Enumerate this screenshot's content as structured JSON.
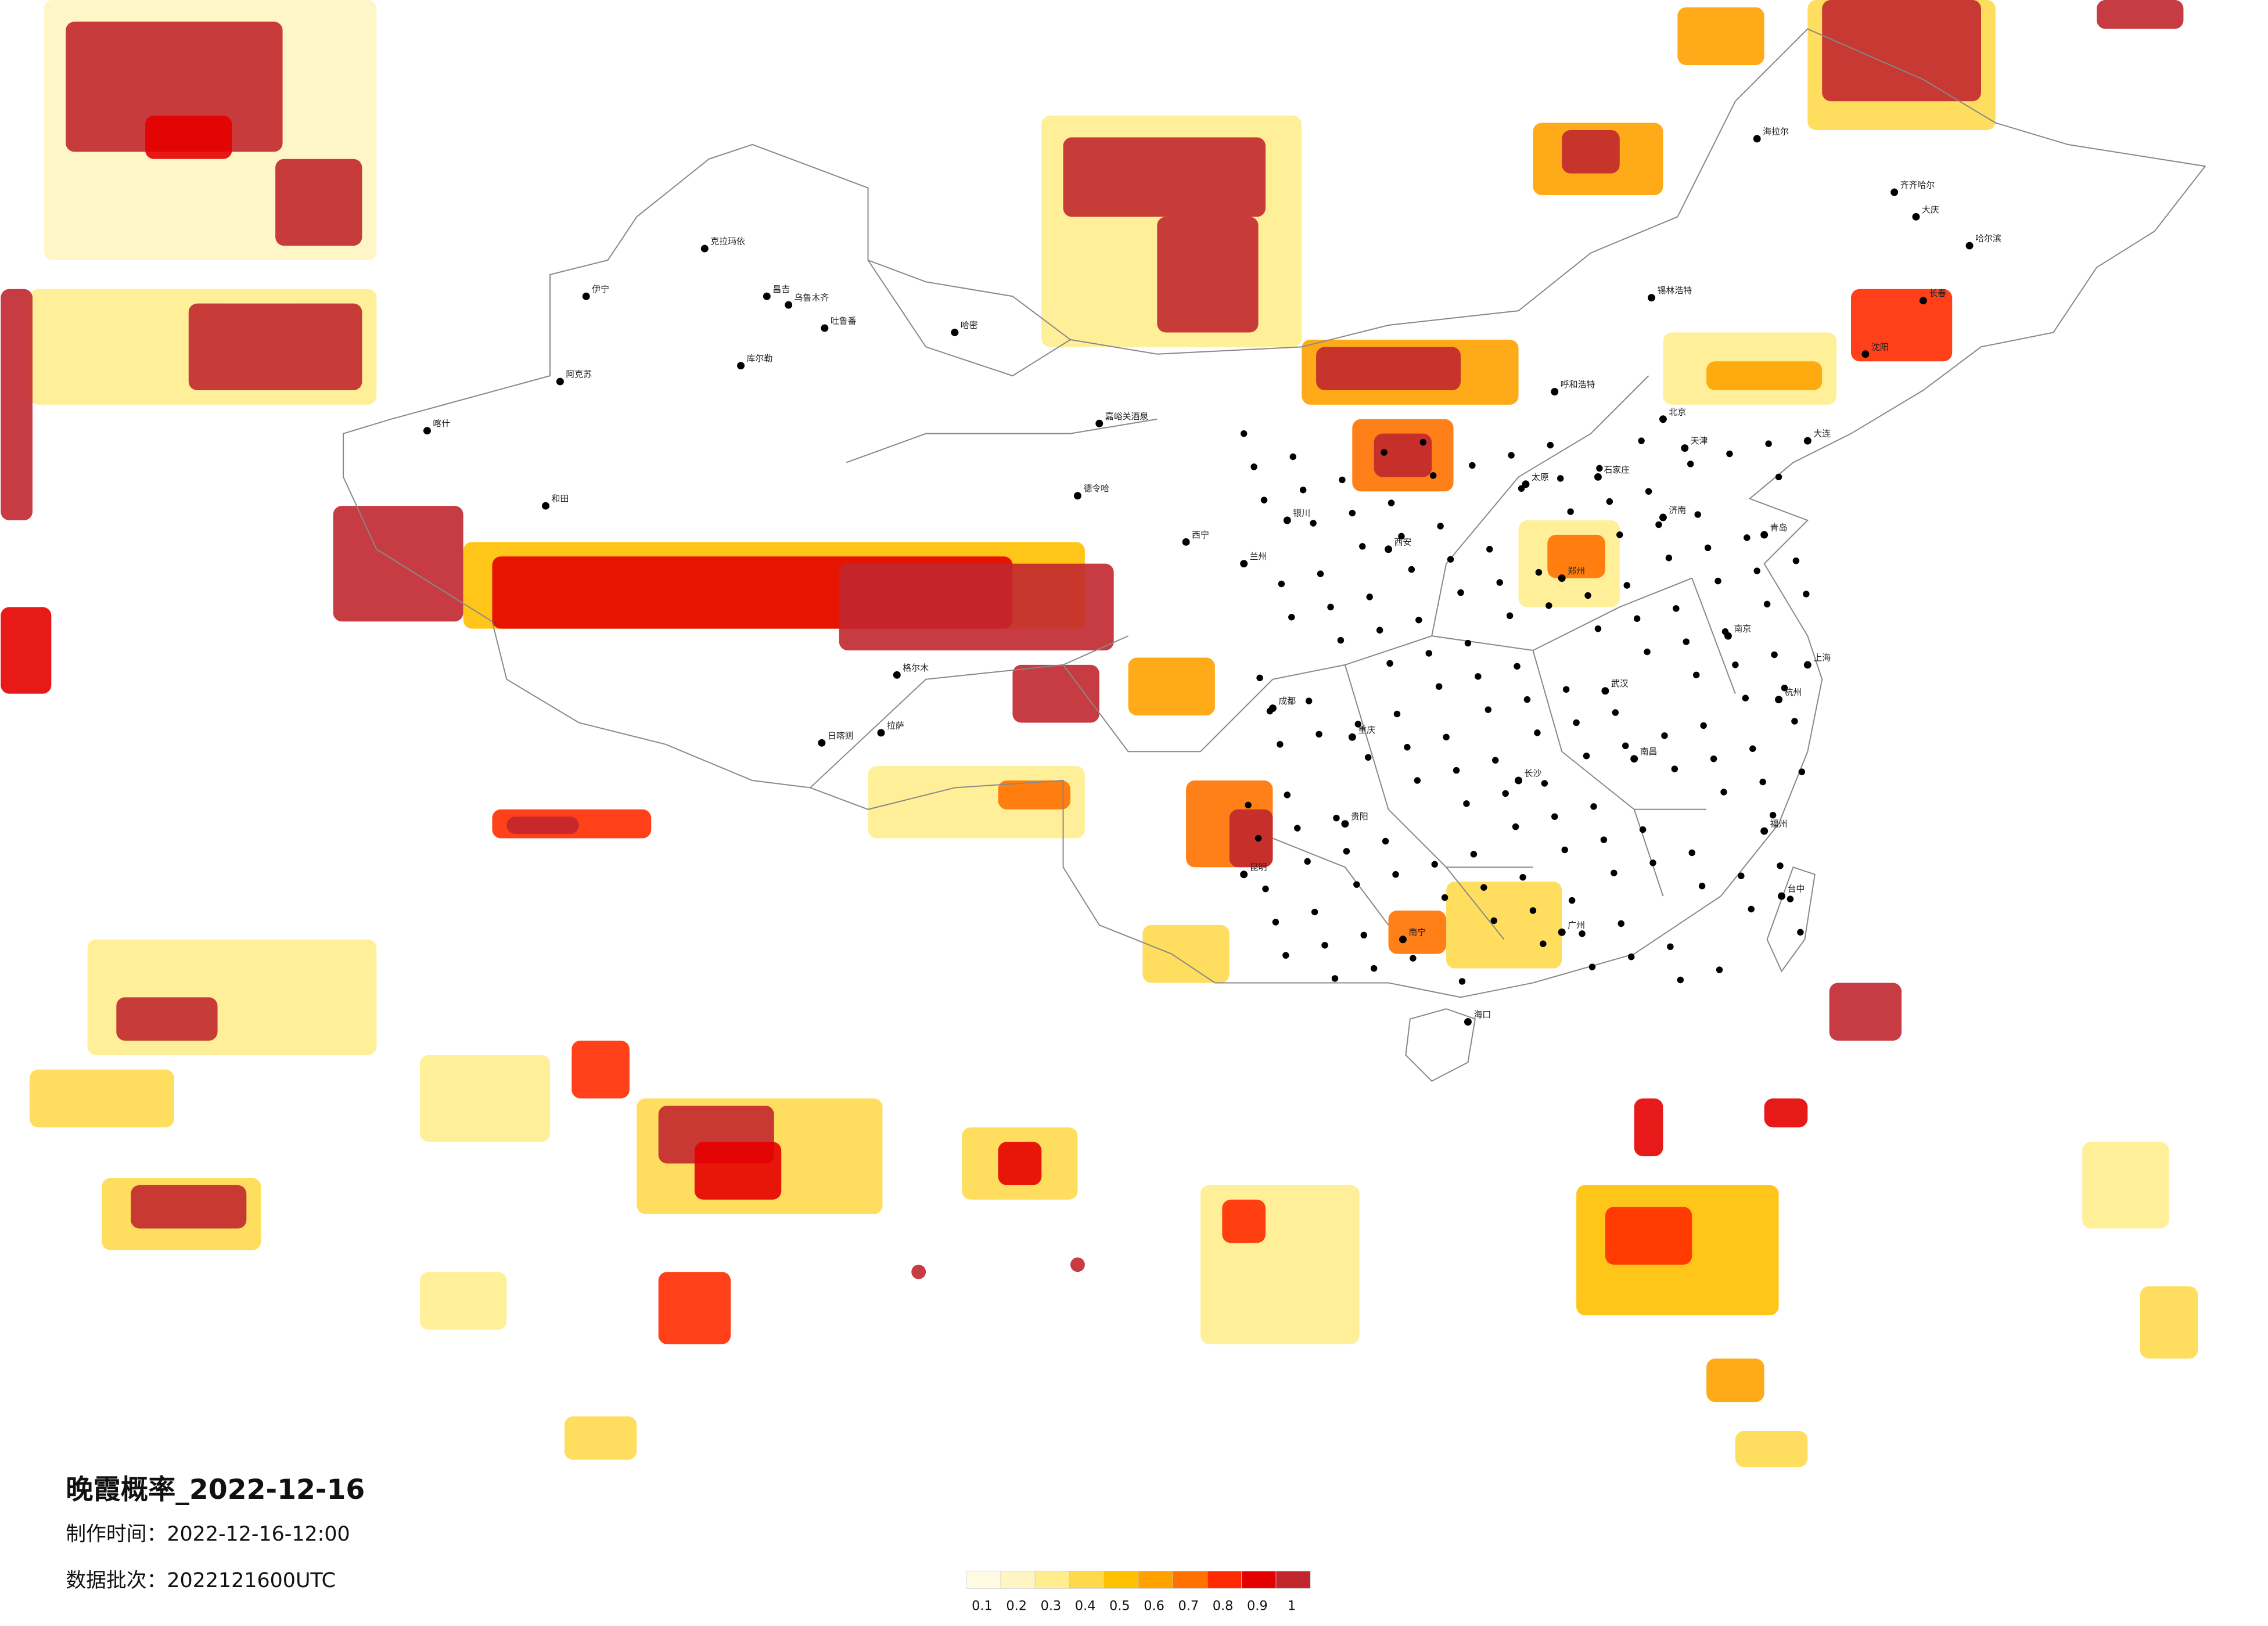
{
  "header": {
    "title": "晚霞概率_2022-12-16",
    "made": "制作时间：2022-12-16-12:00",
    "batch": "数据批次：2022121600UTC"
  },
  "legend": {
    "colors": [
      "#fffbe3",
      "#fff5c2",
      "#ffed8e",
      "#ffd94c",
      "#ffc000",
      "#ffa200",
      "#ff7100",
      "#ff2b00",
      "#e50000",
      "#c1272d"
    ],
    "ticks": [
      0.1,
      0.2,
      0.3,
      0.4,
      0.5,
      0.6,
      0.7,
      0.8,
      0.9,
      1
    ]
  },
  "cities": [
    "克拉玛依",
    "昌吉",
    "乌鲁木齐",
    "吐鲁番",
    "哈密",
    "伊宁",
    "库尔勒",
    "阿克苏",
    "喀什",
    "和田",
    "嘉峪关酒泉",
    "德令哈",
    "格尔木",
    "拉萨",
    "日喀则",
    "海拉尔",
    "齐齐哈尔",
    "大庆",
    "哈尔滨",
    "长春",
    "锡林浩特",
    "呼和浩特",
    "北京",
    "天津",
    "石家庄",
    "太原",
    "济南",
    "西安",
    "郑州",
    "武汉",
    "南京",
    "上海",
    "杭州",
    "成都",
    "重庆",
    "贵阳",
    "昆明",
    "长沙",
    "南昌",
    "福州",
    "广州",
    "南宁",
    "海口",
    "台中",
    "银川",
    "兰州",
    "西宁",
    "沈阳",
    "大连",
    "青岛"
  ]
}
